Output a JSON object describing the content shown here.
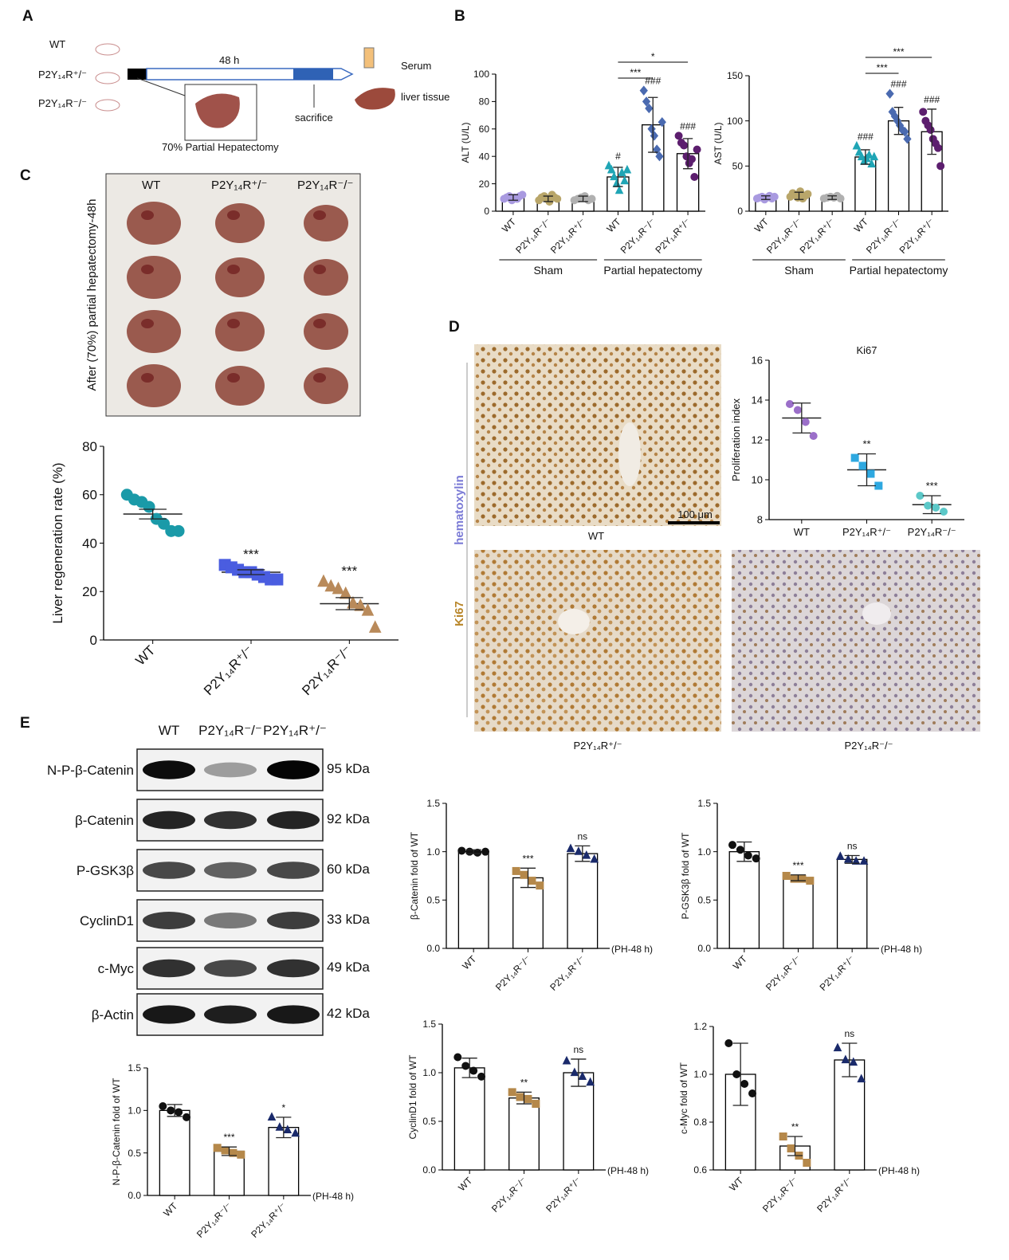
{
  "figure": {
    "panel_labels": [
      "A",
      "B",
      "C",
      "D",
      "E"
    ],
    "schematic": {
      "mice": [
        "WT",
        "P2Y₁₄R⁺/⁻",
        "P2Y₁₄R⁻/⁻"
      ],
      "duration": "48 h",
      "surgery": "70% Partial Hepatectomy",
      "endpoint": "sacrifice",
      "samples": [
        "Serum",
        "liver tissue"
      ]
    },
    "photo": {
      "side_label": "After (70%) partial hepatectomy-48h",
      "columns": [
        "WT",
        "P2Y₁₄R⁺/⁻",
        "P2Y₁₄R⁻/⁻"
      ]
    },
    "histology": {
      "stains": [
        "hematoxylin",
        "Ki67"
      ],
      "scale_bar": "100 μm",
      "captions": [
        "WT",
        "P2Y₁₄R⁺/⁻",
        "P2Y₁₄R⁻/⁻"
      ]
    },
    "blot": {
      "lanes": [
        "WT",
        "P2Y₁₄R⁻/⁻",
        "P2Y₁₄R⁺/⁻"
      ],
      "rows": [
        {
          "protein": "N-P-β-Catenin",
          "size": "95 kDa"
        },
        {
          "protein": "β-Catenin",
          "size": "92 kDa"
        },
        {
          "protein": "P-GSK3β",
          "size": "60 kDa"
        },
        {
          "protein": "CyclinD1",
          "size": "33 kDa"
        },
        {
          "protein": "c-Myc",
          "size": "49 kDa"
        },
        {
          "protein": "β-Actin",
          "size": "42 kDa"
        }
      ]
    }
  },
  "chart_data": [
    {
      "type": "bar",
      "ylabel": "ALT (U/L)",
      "categories": [
        "WT",
        "P2Y₁₄R⁻/⁻",
        "P2Y₁₄R⁺/⁻",
        "WT",
        "P2Y₁₄R⁻/⁻",
        "P2Y₁₄R⁺/⁻"
      ],
      "groups": [
        "Sham",
        "Partial hepatectomy"
      ],
      "values": [
        10,
        9,
        9,
        25,
        63,
        42
      ],
      "errors": [
        2,
        2,
        2,
        7,
        20,
        11
      ],
      "points": [
        [
          9,
          10,
          11,
          8,
          10,
          9,
          11,
          12
        ],
        [
          8,
          10,
          11,
          9,
          7,
          12,
          10,
          9
        ],
        [
          8,
          9,
          10,
          11,
          8,
          9
        ],
        [
          33,
          30,
          25,
          20,
          15,
          28,
          22,
          30
        ],
        [
          88,
          80,
          75,
          60,
          55,
          45,
          40,
          65
        ],
        [
          55,
          50,
          48,
          40,
          35,
          38,
          25,
          45
        ]
      ],
      "colors": [
        "#a99ae0",
        "#b9a66a",
        "#b0b0b0",
        "#1fa5b5",
        "#4a6ab0",
        "#5c1e6e"
      ],
      "markers": [
        "circle",
        "circle",
        "circle",
        "triangle",
        "diamond",
        "circle"
      ],
      "annotations": [
        null,
        null,
        null,
        "#",
        "###",
        "###"
      ],
      "brackets": [
        "*",
        "***"
      ],
      "ylim": [
        0,
        100
      ],
      "yticks": [
        0,
        20,
        40,
        60,
        80,
        100
      ]
    },
    {
      "type": "bar",
      "ylabel": "AST (U/L)",
      "categories": [
        "WT",
        "P2Y₁₄R⁻/⁻",
        "P2Y₁₄R⁺/⁻",
        "WT",
        "P2Y₁₄R⁻/⁻",
        "P2Y₁₄R⁺/⁻"
      ],
      "groups": [
        "Sham",
        "Partial hepatectomy"
      ],
      "values": [
        15,
        17,
        15,
        60,
        100,
        88
      ],
      "errors": [
        2,
        4,
        2,
        8,
        15,
        25
      ],
      "points": [
        [
          14,
          15,
          16,
          13,
          15,
          17,
          14,
          16
        ],
        [
          16,
          20,
          18,
          15,
          22,
          14,
          17,
          19
        ],
        [
          14,
          15,
          16,
          15,
          17,
          14
        ],
        [
          72,
          65,
          60,
          55,
          58,
          62,
          52,
          60
        ],
        [
          130,
          110,
          105,
          100,
          95,
          90,
          88,
          80
        ],
        [
          110,
          100,
          95,
          90,
          80,
          75,
          70,
          50
        ]
      ],
      "colors": [
        "#a99ae0",
        "#b9a66a",
        "#b0b0b0",
        "#1fa5b5",
        "#4a6ab0",
        "#5c1e6e"
      ],
      "markers": [
        "circle",
        "circle",
        "circle",
        "triangle",
        "diamond",
        "circle"
      ],
      "annotations": [
        null,
        null,
        null,
        "###",
        "###",
        "###"
      ],
      "brackets": [
        "***",
        "***"
      ],
      "ylim": [
        0,
        150
      ],
      "yticks": [
        0,
        50,
        100,
        150
      ]
    },
    {
      "type": "scatter",
      "ylabel": "Liver regeneration rate (%)",
      "categories": [
        "WT",
        "P2Y₁₄R⁺/⁻",
        "P2Y₁₄R⁻/⁻"
      ],
      "values": [
        52,
        28,
        15
      ],
      "errors": [
        2,
        1,
        2.5
      ],
      "points": [
        [
          60,
          58,
          57,
          55,
          50,
          48,
          45,
          45
        ],
        [
          31,
          30,
          29,
          28,
          28,
          27,
          26,
          25,
          25
        ],
        [
          24,
          22,
          21,
          19,
          15,
          14,
          12,
          5
        ]
      ],
      "colors": [
        "#1a9aa8",
        "#4a5de0",
        "#b98a5a"
      ],
      "markers": [
        "circle",
        "square",
        "triangle"
      ],
      "annotations": [
        null,
        "***",
        "***"
      ],
      "ylim": [
        0,
        80
      ],
      "yticks": [
        0,
        20,
        40,
        60,
        80
      ]
    },
    {
      "type": "scatter",
      "title": "Ki67",
      "ylabel": "Proliferation index",
      "categories": [
        "WT",
        "P2Y₁₄R⁺/⁻",
        "P2Y₁₄R⁻/⁻"
      ],
      "values": [
        13.1,
        10.5,
        8.75
      ],
      "errors": [
        0.75,
        0.8,
        0.45
      ],
      "points": [
        [
          13.8,
          13.5,
          12.9,
          12.2
        ],
        [
          11.1,
          10.7,
          10.3,
          9.7
        ],
        [
          9.2,
          8.7,
          8.6,
          8.4
        ]
      ],
      "colors": [
        "#9b6fc9",
        "#2ea8e0",
        "#5cc8c8"
      ],
      "markers": [
        "circle",
        "square",
        "circle"
      ],
      "annotations": [
        null,
        "**",
        "***"
      ],
      "ylim": [
        8,
        16
      ],
      "yticks": [
        8,
        10,
        12,
        14,
        16
      ]
    },
    {
      "type": "bar",
      "ylabel": "N-P-β-Catenin fold of WT",
      "xlabel": "(PH-48 h)",
      "categories": [
        "WT",
        "P2Y₁₄R⁻/⁻",
        "P2Y₁₄R⁺/⁻"
      ],
      "values": [
        1.0,
        0.52,
        0.8
      ],
      "errors": [
        0.07,
        0.05,
        0.12
      ],
      "points": [
        [
          1.05,
          1.0,
          0.98,
          0.92
        ],
        [
          0.56,
          0.53,
          0.5,
          0.48
        ],
        [
          0.92,
          0.8,
          0.77,
          0.73
        ]
      ],
      "colors": [
        "#111111",
        "#b5884a",
        "#1a2a6b"
      ],
      "markers": [
        "circle",
        "square",
        "triangle"
      ],
      "annotations": [
        null,
        "***",
        "*"
      ],
      "ylim": [
        0,
        1.5
      ],
      "yticks": [
        {
          "value": 0,
          "label": "0.0"
        },
        {
          "value": 0.5,
          "label": "0.5"
        },
        {
          "value": 1,
          "label": "1.0"
        },
        {
          "value": 1.5,
          "label": "1.5"
        }
      ]
    },
    {
      "type": "bar",
      "ylabel": "β-Catenin fold of WT",
      "xlabel": "(PH-48 h)",
      "categories": [
        "WT",
        "P2Y₁₄R⁻/⁻",
        "P2Y₁₄R⁺/⁻"
      ],
      "values": [
        1.0,
        0.73,
        0.98
      ],
      "errors": [
        0.02,
        0.1,
        0.08
      ],
      "points": [
        [
          1.01,
          1.0,
          0.99,
          1.0
        ],
        [
          0.8,
          0.76,
          0.7,
          0.65
        ],
        [
          1.03,
          1.0,
          0.96,
          0.92
        ]
      ],
      "colors": [
        "#111111",
        "#b5884a",
        "#1a2a6b"
      ],
      "markers": [
        "circle",
        "square",
        "triangle"
      ],
      "annotations": [
        null,
        "***",
        "ns"
      ],
      "ylim": [
        0,
        1.5
      ],
      "yticks": [
        {
          "value": 0,
          "label": "0.0"
        },
        {
          "value": 0.5,
          "label": "0.5"
        },
        {
          "value": 1,
          "label": "1.0"
        },
        {
          "value": 1.5,
          "label": "1.5"
        }
      ]
    },
    {
      "type": "bar",
      "ylabel": "P-GSK3β fold of WT",
      "xlabel": "(PH-48 h)",
      "categories": [
        "WT",
        "P2Y₁₄R⁻/⁻",
        "P2Y₁₄R⁺/⁻"
      ],
      "values": [
        1.0,
        0.73,
        0.92
      ],
      "errors": [
        0.1,
        0.03,
        0.04
      ],
      "points": [
        [
          1.07,
          1.02,
          0.96,
          0.93
        ],
        [
          0.75,
          0.72,
          0.72,
          0.7
        ],
        [
          0.95,
          0.92,
          0.9,
          0.9
        ]
      ],
      "colors": [
        "#111111",
        "#b5884a",
        "#1a2a6b"
      ],
      "markers": [
        "circle",
        "square",
        "triangle"
      ],
      "annotations": [
        null,
        "***",
        "ns"
      ],
      "ylim": [
        0,
        1.5
      ],
      "yticks": [
        {
          "value": 0,
          "label": "0.0"
        },
        {
          "value": 0.5,
          "label": "0.5"
        },
        {
          "value": 1,
          "label": "1.0"
        },
        {
          "value": 1.5,
          "label": "1.5"
        }
      ]
    },
    {
      "type": "bar",
      "ylabel": "CyclinD1 fold of WT",
      "xlabel": "(PH-48 h)",
      "categories": [
        "WT",
        "P2Y₁₄R⁻/⁻",
        "P2Y₁₄R⁺/⁻"
      ],
      "values": [
        1.05,
        0.74,
        1.0
      ],
      "errors": [
        0.1,
        0.06,
        0.14
      ],
      "points": [
        [
          1.16,
          1.07,
          1.02,
          0.96
        ],
        [
          0.8,
          0.75,
          0.73,
          0.68
        ],
        [
          1.12,
          1.0,
          0.96,
          0.9
        ]
      ],
      "colors": [
        "#111111",
        "#b5884a",
        "#1a2a6b"
      ],
      "markers": [
        "circle",
        "square",
        "triangle"
      ],
      "annotations": [
        null,
        "**",
        "ns"
      ],
      "ylim": [
        0,
        1.5
      ],
      "yticks": [
        {
          "value": 0,
          "label": "0.0"
        },
        {
          "value": 0.5,
          "label": "0.5"
        },
        {
          "value": 1,
          "label": "1.0"
        },
        {
          "value": 1.5,
          "label": "1.5"
        }
      ]
    },
    {
      "type": "bar",
      "ylabel": "c-Myc fold of WT",
      "xlabel": "(PH-48 h)",
      "categories": [
        "WT",
        "P2Y₁₄R⁻/⁻",
        "P2Y₁₄R⁺/⁻"
      ],
      "values": [
        1.0,
        0.7,
        1.06
      ],
      "errors": [
        0.13,
        0.04,
        0.07
      ],
      "points": [
        [
          1.13,
          1.0,
          0.96,
          0.92
        ],
        [
          0.74,
          0.69,
          0.66,
          0.63
        ],
        [
          1.11,
          1.06,
          1.05,
          0.98
        ]
      ],
      "colors": [
        "#111111",
        "#b5884a",
        "#1a2a6b"
      ],
      "markers": [
        "circle",
        "square",
        "triangle"
      ],
      "annotations": [
        null,
        "**",
        "ns"
      ],
      "ylim": [
        0.6,
        1.2
      ],
      "yticks": [
        0.6,
        0.8,
        {
          "value": 1,
          "label": "1.0"
        },
        1.2
      ]
    }
  ]
}
